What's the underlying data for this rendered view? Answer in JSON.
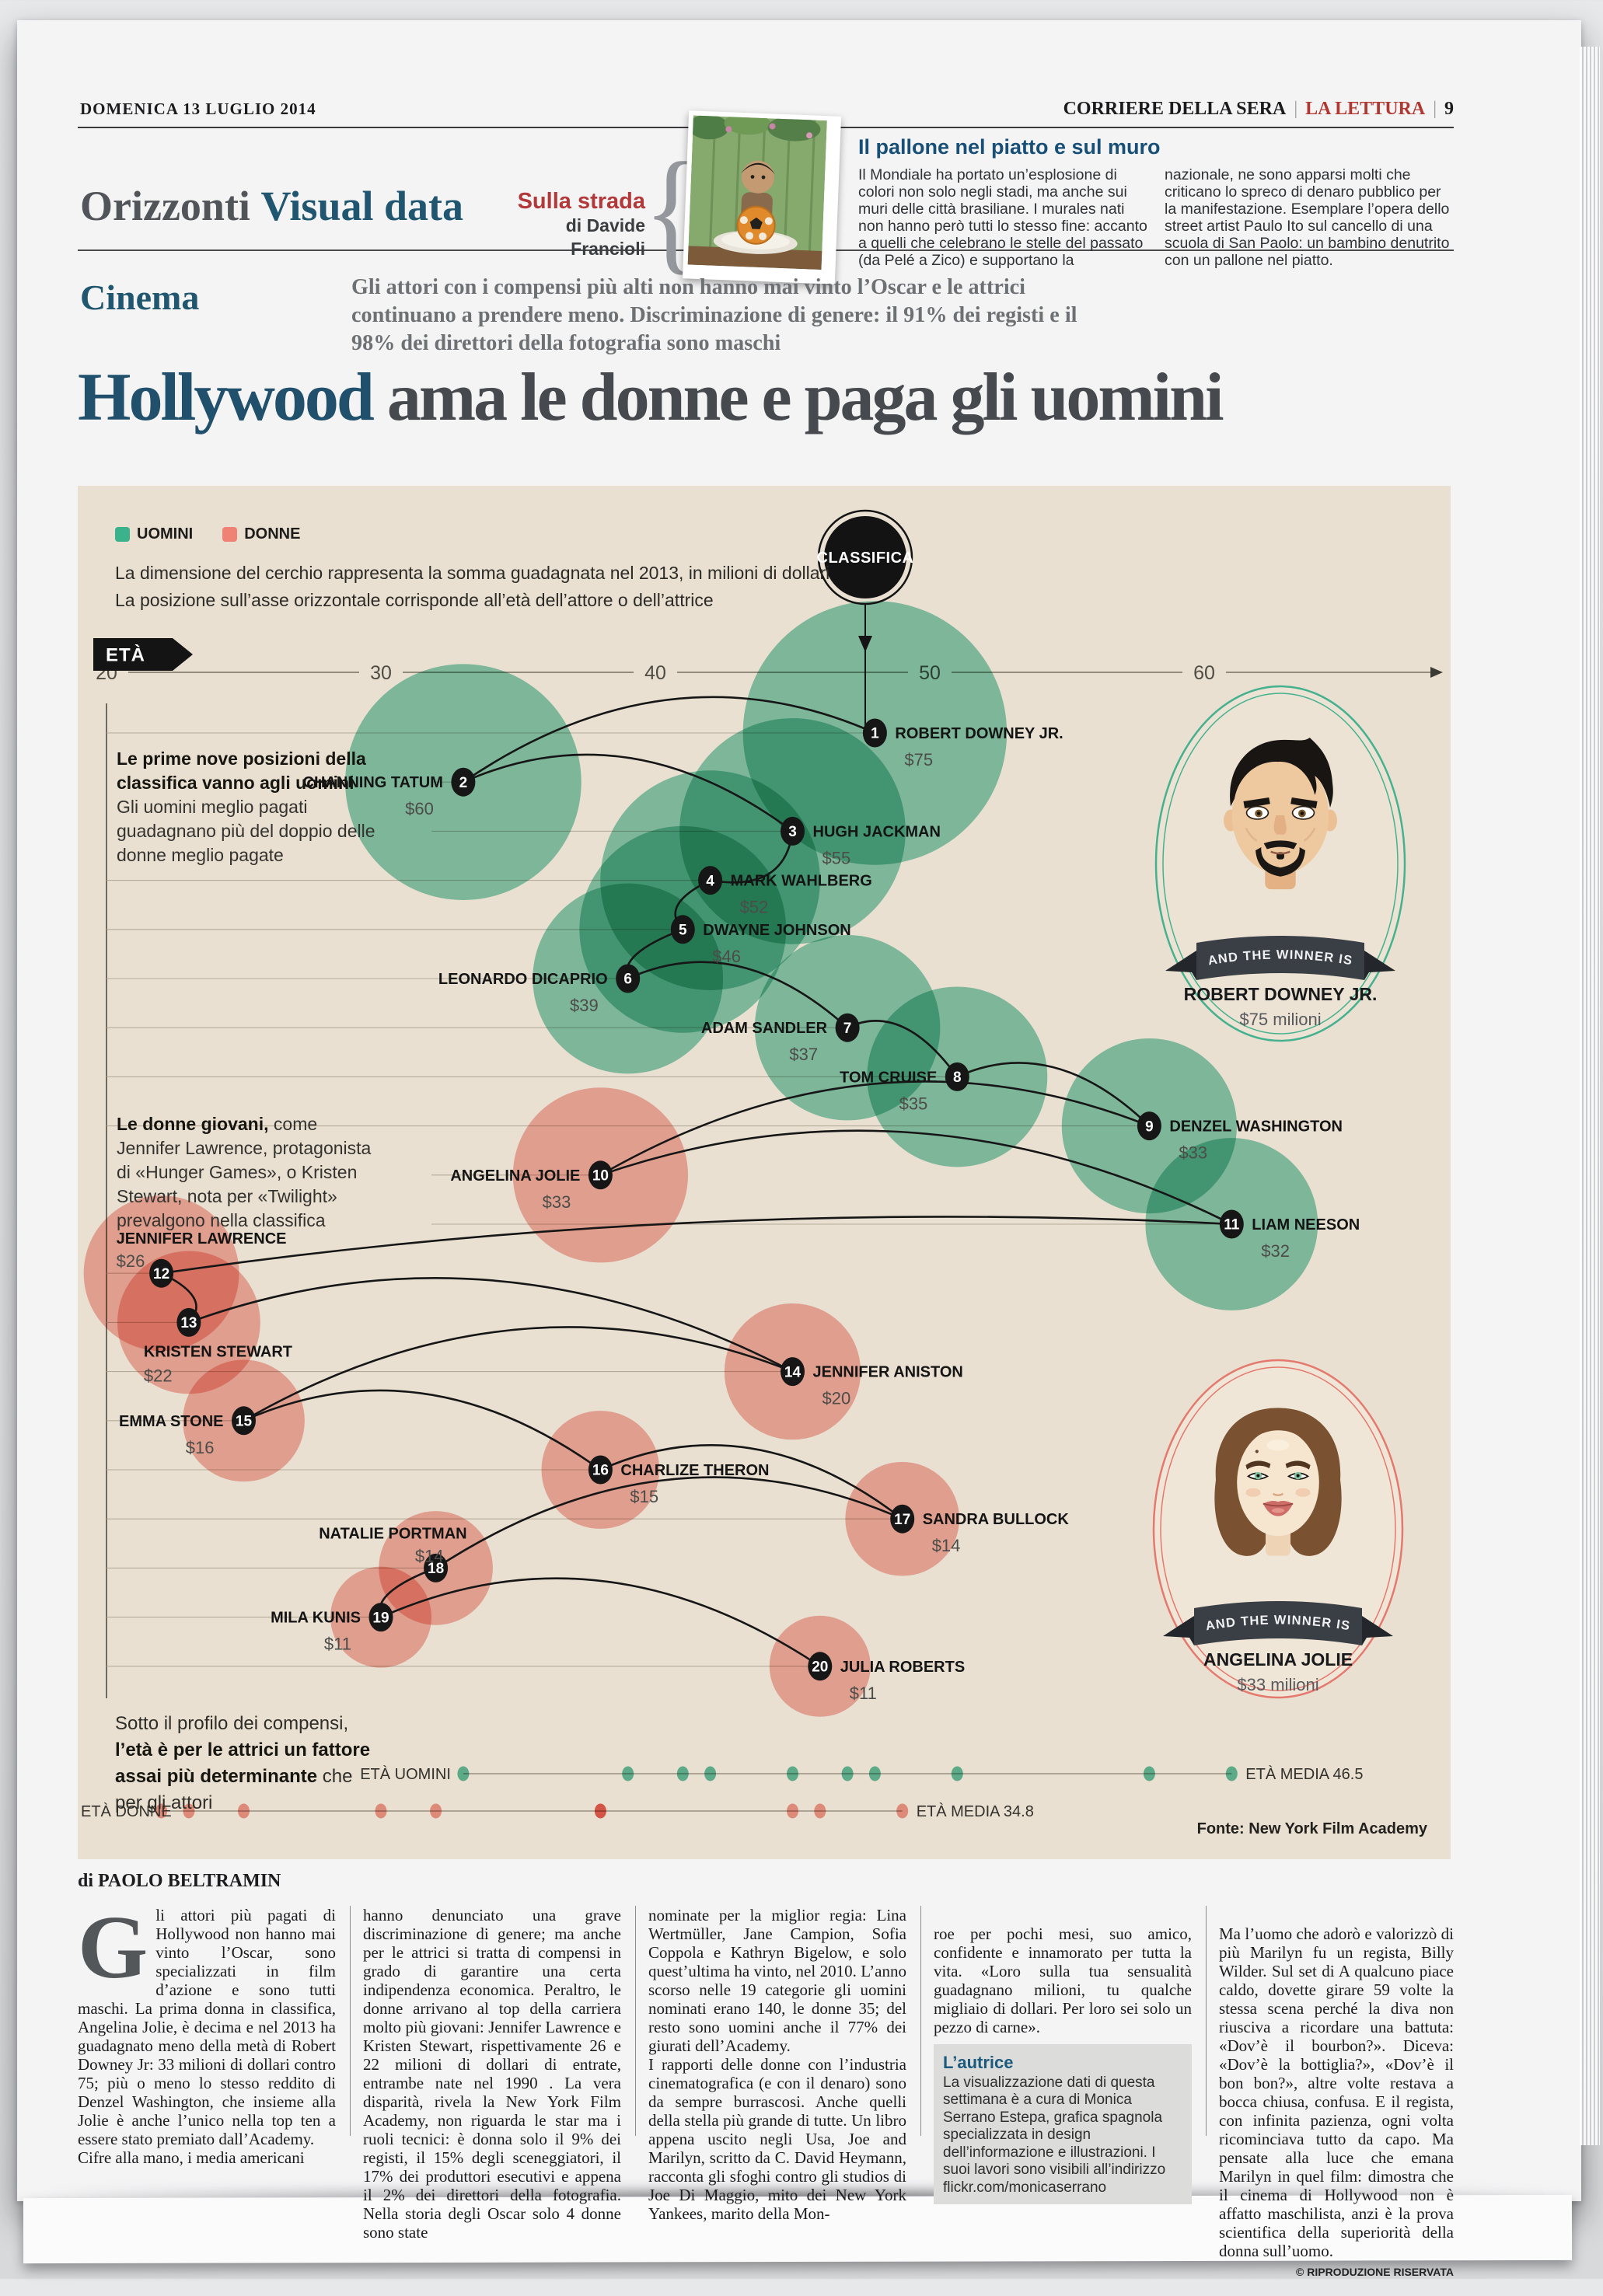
{
  "page": {
    "date": "DOMENICA 13 LUGLIO 2014",
    "brand": "CORRIERE DELLA SERA",
    "supplement": "LA LETTURA",
    "page_number": "9"
  },
  "masthead": {
    "section": "Orizzonti",
    "section_sub": "Visual data",
    "strada_title": "Sulla strada",
    "strada_author": "di Davide Francioli",
    "brace": "{"
  },
  "pallone": {
    "title": "Il pallone nel piatto e sul muro",
    "col1": "Il Mondiale ha portato un’esplosione di colori non solo negli stadi, ma anche sui muri delle città brasiliane. I murales nati non hanno però tutti lo stesso fine: accanto a quelli che celebrano le stelle del passato (da Pelé a Zico) e supportano la",
    "col2": "nazionale, ne sono apparsi molti che criticano lo spreco di denaro pubblico per la manifestazione. Esemplare l’opera dello street artist Paulo Ito sul cancello di una scuola di San Paolo: un bambino denutrito con un pallone nel piatto."
  },
  "kicker": {
    "label": "Cinema",
    "deck": "Gli attori con i compensi più alti non hanno mai vinto l’Oscar e le attrici continuano a prendere meno. Discriminazione di genere: il 91% dei registi e il 98% dei direttori della fotografia sono maschi"
  },
  "headline": {
    "lead": "Hollywood",
    "rest": " ama le donne e paga gli uomini"
  },
  "chart_data": {
    "type": "scatter",
    "unit": "milioni di dollari, 2013",
    "colors": {
      "men": "#3bb18c",
      "women": "#ef8275",
      "panel": "#e9e0d2"
    },
    "legend": {
      "men": "UOMINI",
      "women": "DONNE"
    },
    "size_note": "La dimensione del cerchio rappresenta la somma guadagnata nel 2013, in milioni di dollari",
    "position_note": "La posizione sull’asse orizzontale corrisponde all’età dell’attore o dell’attrice",
    "badge": "CLASSIFICA",
    "x_axis": {
      "label": "ETÀ",
      "ticks": [
        20,
        30,
        40,
        50,
        60
      ]
    },
    "annotations": {
      "men": {
        "title": "Le prime nove posizioni della classifica vanno agli uomini",
        "body": "Gli uomini meglio pagati guadagnano più del doppio delle donne meglio pagate"
      },
      "women": {
        "lead": "Le donne giovani,",
        "body": " come Jennifer Lawrence, protagonista di «Hunger Games», o Kristen Stewart, nota per «Twilight» prevalgono nella classifica"
      }
    },
    "actors": [
      {
        "rank": 1,
        "name": "ROBERT DOWNEY JR.",
        "value": 75,
        "label": "$75",
        "age": 48,
        "gender": "m",
        "side": "right"
      },
      {
        "rank": 2,
        "name": "CHANNING TATUM",
        "value": 60,
        "label": "$60",
        "age": 33,
        "gender": "m",
        "side": "left"
      },
      {
        "rank": 3,
        "name": "HUGH JACKMAN",
        "value": 55,
        "label": "$55",
        "age": 45,
        "gender": "m",
        "side": "right"
      },
      {
        "rank": 4,
        "name": "MARK WAHLBERG",
        "value": 52,
        "label": "$52",
        "age": 42,
        "gender": "m",
        "side": "right"
      },
      {
        "rank": 5,
        "name": "DWAYNE JOHNSON",
        "value": 46,
        "label": "$46",
        "age": 41,
        "gender": "m",
        "side": "right"
      },
      {
        "rank": 6,
        "name": "LEONARDO DICAPRIO",
        "value": 39,
        "label": "$39",
        "age": 39,
        "gender": "m",
        "side": "left"
      },
      {
        "rank": 7,
        "name": "ADAM SANDLER",
        "value": 37,
        "label": "$37",
        "age": 47,
        "gender": "m",
        "side": "left"
      },
      {
        "rank": 8,
        "name": "TOM CRUISE",
        "value": 35,
        "label": "$35",
        "age": 51,
        "gender": "m",
        "side": "left"
      },
      {
        "rank": 9,
        "name": "DENZEL WASHINGTON",
        "value": 33,
        "label": "$33",
        "age": 58,
        "gender": "m",
        "side": "right"
      },
      {
        "rank": 10,
        "name": "ANGELINA JOLIE",
        "value": 33,
        "label": "$33",
        "age": 38,
        "gender": "f",
        "side": "left"
      },
      {
        "rank": 11,
        "name": "LIAM NEESON",
        "value": 32,
        "label": "$32",
        "age": 61,
        "gender": "m",
        "side": "right"
      },
      {
        "rank": 12,
        "name": "JENNIFER LAWRENCE",
        "value": 26,
        "label": "$26",
        "age": 22,
        "gender": "f",
        "side": "above"
      },
      {
        "rank": 13,
        "name": "KRISTEN STEWART",
        "value": 22,
        "label": "$22",
        "age": 23,
        "gender": "f",
        "side": "below"
      },
      {
        "rank": 14,
        "name": "JENNIFER ANISTON",
        "value": 20,
        "label": "$20",
        "age": 45,
        "gender": "f",
        "side": "right"
      },
      {
        "rank": 15,
        "name": "EMMA STONE",
        "value": 16,
        "label": "$16",
        "age": 25,
        "gender": "f",
        "side": "left"
      },
      {
        "rank": 16,
        "name": "CHARLIZE THERON",
        "value": 15,
        "label": "$15",
        "age": 38,
        "gender": "f",
        "side": "right"
      },
      {
        "rank": 17,
        "name": "SANDRA BULLOCK",
        "value": 14,
        "label": "$14",
        "age": 49,
        "gender": "f",
        "side": "right"
      },
      {
        "rank": 18,
        "name": "NATALIE PORTMAN",
        "value": 14,
        "label": "$14",
        "age": 32,
        "gender": "f",
        "side": "above-end"
      },
      {
        "rank": 19,
        "name": "MILA KUNIS",
        "value": 11,
        "label": "$11",
        "age": 30,
        "gender": "f",
        "side": "left"
      },
      {
        "rank": 20,
        "name": "JULIA ROBERTS",
        "value": 11,
        "label": "$11",
        "age": 46,
        "gender": "f",
        "side": "right"
      }
    ],
    "age_note": {
      "pre": "Sotto il profilo dei compensi, ",
      "bold": "l’età è per le attrici un fattore assai più determinante",
      "post": " che per gli attori"
    },
    "strips": {
      "men": {
        "label": "ETÀ UOMINI",
        "mean_label": "ETÀ MEDIA 46.5",
        "mean": 46.5,
        "ages": [
          33,
          39,
          41,
          42,
          45,
          47,
          48,
          51,
          58,
          61
        ]
      },
      "women": {
        "label": "ETÀ DONNE",
        "mean_label": "ETÀ MEDIA 34.8",
        "mean": 34.8,
        "ages": [
          22,
          23,
          25,
          30,
          32,
          38,
          38,
          45,
          46,
          49
        ]
      }
    },
    "winners": {
      "ribbon": "AND THE WINNER IS",
      "man": {
        "name": "ROBERT DOWNEY JR.",
        "amount": "$75 milioni"
      },
      "woman": {
        "name": "ANGELINA JOLIE",
        "amount": "$33 milioni"
      }
    },
    "source": "Fonte: New York Film Academy"
  },
  "article": {
    "byline": "di PAOLO BELTRAMIN",
    "dropcap": "G",
    "col1": "li attori più pagati di Hollywood non hanno mai vinto l’Oscar, sono specializzati in film d’azione e sono tutti maschi. La prima donna in classifica, Angelina Jolie, è decima e nel 2013 ha guadagnato meno della metà di Robert Downey Jr: 33 milioni di dollari contro 75; più o meno lo stesso reddito di Denzel Washington, che insieme alla Jolie è anche l’unico nella top ten a essere stato premiato dall’Academy.\nCifre alla mano, i media americani",
    "col2": "hanno denunciato una grave discriminazione di genere; ma anche per le attrici si tratta di compensi in grado di garantire una certa indipendenza economica. Peraltro, le donne arrivano al top della carriera molto più giovani: Jennifer Lawrence e Kristen Stewart, rispettivamente 26 e 22 milioni di dollari di entrate, entrambe nate nel 1990 . La vera disparità, rivela la New York Film Academy, non riguarda le star ma i ruoli tecnici: è donna solo il 9% dei registi, il 15% degli sceneggiatori, il 17% dei produttori esecutivi e appena il 2% dei direttori della fotografia. Nella storia degli Oscar solo 4 donne sono state",
    "col3": "nominate per la miglior regia: Lina Wertmüller, Jane Campion, Sofia Coppola e Kathryn Bigelow, e solo quest’ultima ha vinto, nel 2010. L’anno scorso nelle 19 categorie gli uomini nominati erano 140, le donne 35; del resto sono uomini anche il 77% dei giurati dell’Academy.\nI rapporti delle donne con l’industria cinematografica (e con il denaro) sono da sempre burrascosi. Anche quelli della stella più grande di tutte. Un libro appena uscito negli Usa, Joe and Marilyn, scritto da C. David Heymann, racconta gli sfoghi contro gli studios di Joe Di Maggio, mito dei New York Yankees, marito della Mon-",
    "col4": "roe per pochi mesi, suo amico, confidente e innamorato per tutta la vita. «Loro sulla tua sensualità guadagnano milioni, tu qualche migliaio di dollari. Per loro sei solo un pezzo di carne».",
    "autrice_title": "L’autrice",
    "autrice_body": "La visualizzazione dati di questa settimana è a cura di Monica Serrano Estepa, grafica spagnola specializzata in design dell’informazione e illustrazioni. I suoi lavori sono visibili all’indirizzo flickr.com/monicaserrano",
    "col5": "Ma l’uomo che adorò e valorizzò di più Marilyn fu un regista, Billy Wilder. Sul set di A qualcuno piace caldo, dovette girare 59 volte la stessa scena perché la diva non riusciva a ricordare una battuta: «Dov’è il bourbon?». Diceva: «Dov’è la bottiglia?», «Dov’è il bon bon?», altre volte restava a bocca chiusa, confusa. E il regista, con infinita pazienza, ogni volta ricominciava tutto da capo. Ma pensate alla luce che emana Marilyn in quel film: dimostra che il cinema di Hollywood non è affatto maschilista, anzi è la prova scientifica della superiorità della donna sull’uomo.",
    "copyright": "© RIPRODUZIONE RISERVATA"
  }
}
